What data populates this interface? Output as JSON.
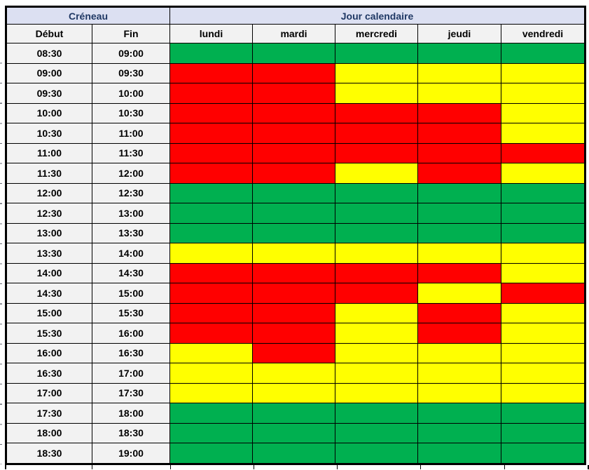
{
  "styles": {
    "group_header_bg": "#DCE0F2",
    "group_header_text": "#1F3864",
    "subheader_bg": "#F2F2F2",
    "time_cell_bg": "#F2F2F2",
    "cell_text": "#000000",
    "grid_line": "#000000"
  },
  "chart_data": {
    "type": "heatmap",
    "rows_group_label": "Créneau",
    "columns_group_label": "Jour calendaire",
    "row_headers": [
      "Début",
      "Fin"
    ],
    "x_categories": [
      "lundi",
      "mardi",
      "mercredi",
      "jeudi",
      "vendredi"
    ],
    "color_map": {
      "green": "#00B050",
      "yellow": "#FFFF00",
      "red": "#FF0000"
    },
    "rows": [
      {
        "debut": "08:30",
        "fin": "09:00",
        "statuses": [
          "green",
          "green",
          "green",
          "green",
          "green"
        ]
      },
      {
        "debut": "09:00",
        "fin": "09:30",
        "statuses": [
          "red",
          "red",
          "yellow",
          "yellow",
          "yellow"
        ]
      },
      {
        "debut": "09:30",
        "fin": "10:00",
        "statuses": [
          "red",
          "red",
          "yellow",
          "yellow",
          "yellow"
        ]
      },
      {
        "debut": "10:00",
        "fin": "10:30",
        "statuses": [
          "red",
          "red",
          "red",
          "red",
          "yellow"
        ]
      },
      {
        "debut": "10:30",
        "fin": "11:00",
        "statuses": [
          "red",
          "red",
          "red",
          "red",
          "yellow"
        ]
      },
      {
        "debut": "11:00",
        "fin": "11:30",
        "statuses": [
          "red",
          "red",
          "red",
          "red",
          "red"
        ]
      },
      {
        "debut": "11:30",
        "fin": "12:00",
        "statuses": [
          "red",
          "red",
          "yellow",
          "red",
          "yellow"
        ]
      },
      {
        "debut": "12:00",
        "fin": "12:30",
        "statuses": [
          "green",
          "green",
          "green",
          "green",
          "green"
        ]
      },
      {
        "debut": "12:30",
        "fin": "13:00",
        "statuses": [
          "green",
          "green",
          "green",
          "green",
          "green"
        ]
      },
      {
        "debut": "13:00",
        "fin": "13:30",
        "statuses": [
          "green",
          "green",
          "green",
          "green",
          "green"
        ]
      },
      {
        "debut": "13:30",
        "fin": "14:00",
        "statuses": [
          "yellow",
          "yellow",
          "yellow",
          "yellow",
          "yellow"
        ]
      },
      {
        "debut": "14:00",
        "fin": "14:30",
        "statuses": [
          "red",
          "red",
          "red",
          "red",
          "yellow"
        ]
      },
      {
        "debut": "14:30",
        "fin": "15:00",
        "statuses": [
          "red",
          "red",
          "red",
          "yellow",
          "red"
        ]
      },
      {
        "debut": "15:00",
        "fin": "15:30",
        "statuses": [
          "red",
          "red",
          "yellow",
          "red",
          "yellow"
        ]
      },
      {
        "debut": "15:30",
        "fin": "16:00",
        "statuses": [
          "red",
          "red",
          "yellow",
          "red",
          "yellow"
        ]
      },
      {
        "debut": "16:00",
        "fin": "16:30",
        "statuses": [
          "yellow",
          "red",
          "yellow",
          "yellow",
          "yellow"
        ]
      },
      {
        "debut": "16:30",
        "fin": "17:00",
        "statuses": [
          "yellow",
          "yellow",
          "yellow",
          "yellow",
          "yellow"
        ]
      },
      {
        "debut": "17:00",
        "fin": "17:30",
        "statuses": [
          "yellow",
          "yellow",
          "yellow",
          "yellow",
          "yellow"
        ]
      },
      {
        "debut": "17:30",
        "fin": "18:00",
        "statuses": [
          "green",
          "green",
          "green",
          "green",
          "green"
        ]
      },
      {
        "debut": "18:00",
        "fin": "18:30",
        "statuses": [
          "green",
          "green",
          "green",
          "green",
          "green"
        ]
      },
      {
        "debut": "18:30",
        "fin": "19:00",
        "statuses": [
          "green",
          "green",
          "green",
          "green",
          "green"
        ]
      }
    ]
  }
}
